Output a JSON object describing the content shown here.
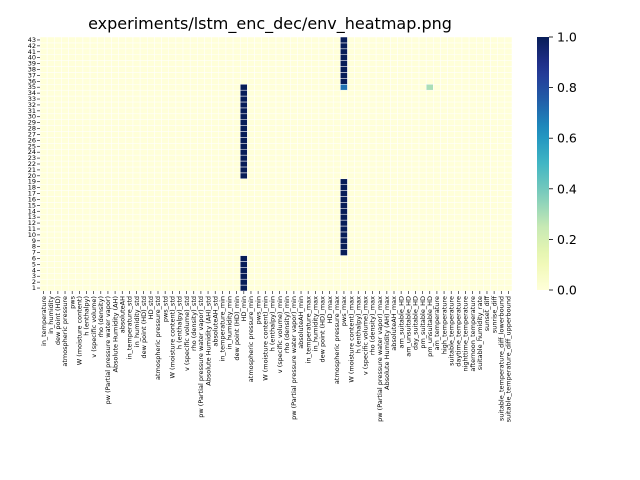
{
  "chart_data": {
    "type": "heatmap",
    "title": "experiments/lstm_enc_dec/env_heatmap.png",
    "xlabel": "",
    "ylabel": "",
    "y_ticks": [
      "1",
      "2",
      "3",
      "4",
      "5",
      "6",
      "7",
      "8",
      "9",
      "10",
      "11",
      "12",
      "13",
      "14",
      "15",
      "16",
      "17",
      "18",
      "19",
      "20",
      "21",
      "22",
      "23",
      "24",
      "25",
      "26",
      "27",
      "28",
      "29",
      "30",
      "31",
      "32",
      "33",
      "34",
      "35",
      "36",
      "37",
      "38",
      "39",
      "40",
      "41",
      "42",
      "43"
    ],
    "x_ticks": [
      "in_temperature",
      "in_humidity",
      "dew point (HD)",
      "atmospheric pressure",
      "pws",
      "W (moisture content)",
      "h (enthalpy)",
      "v (specific volume)",
      "rho (density)",
      "pw (Partial pressure water vapor)",
      "Absolute Humidity (AH)",
      "absoluteAH",
      "in_temperature_std",
      "in_humidity_std",
      "dew point (HD)_std",
      "HD_std",
      "atmospheric pressure_std",
      "pws_std",
      "W (moisture content)_std",
      "h (enthalpy)_std",
      "v (specific volume)_std",
      "rho (density)_std",
      "pw (Partial pressure water vapor)_std",
      "Absolute Humidity (AH)_std",
      "absoluteAH_std",
      "in_temperature_min",
      "in_humidity_min",
      "dew point (HD)_min",
      "HD_min",
      "atmospheric pressure_min",
      "pws_min",
      "W (moisture content)_min",
      "h (enthalpy)_min",
      "v (specific volume)_min",
      "rho (density)_min",
      "pw (Partial pressure water vapor)_min",
      "absoluteAH_min",
      "in_temperature_max",
      "in_humidity_max",
      "dew point (HD)_max",
      "HD_max",
      "atmospheric pressure_max",
      "pws_max",
      "W (moisture content)_max",
      "h (enthalpy)_max",
      "v (specific volume)_max",
      "rho (density)_max",
      "pw (Partial pressure water vapor)_max",
      "Absolute Humidity (AH)_max",
      "absoluteAH_max",
      "am_suitable_HD",
      "am_unsuitable_HD",
      "day_suitable_HD",
      "pm_suitable_HD",
      "pm_unsuitable_HD",
      "am_temperature",
      "high_temperature",
      "suitable_temperature",
      "daytime_temperature",
      "nighttime_temperature",
      "afternoon_temperature",
      "suitable_humidity_rate",
      "sunset_diff",
      "sunrise_diff",
      "suitable_temperature_diff_lowerbound",
      "suitable_temperature_diff_upperbound"
    ],
    "nonzero_cells": [
      {
        "x": "HD_min",
        "y_range": [
          1,
          6
        ],
        "value": 1.0
      },
      {
        "x": "HD_min",
        "y_range": [
          20,
          35
        ],
        "value": 1.0
      },
      {
        "x": "pws_max",
        "y_range": [
          7,
          19
        ],
        "value": 1.0
      },
      {
        "x": "pws_max",
        "y_range": [
          36,
          43
        ],
        "value": 1.0
      },
      {
        "x": "pws_max",
        "y": 35,
        "value": 0.7
      },
      {
        "x": "pm_unsuitable_HD",
        "y": 35,
        "value": 0.3
      }
    ],
    "default_value": 0.0,
    "colorbar": {
      "min": 0.0,
      "max": 1.0,
      "ticks": [
        "0.0",
        "0.2",
        "0.4",
        "0.6",
        "0.8",
        "1.0"
      ],
      "colormap": "YlGnBu"
    },
    "grid": true
  }
}
